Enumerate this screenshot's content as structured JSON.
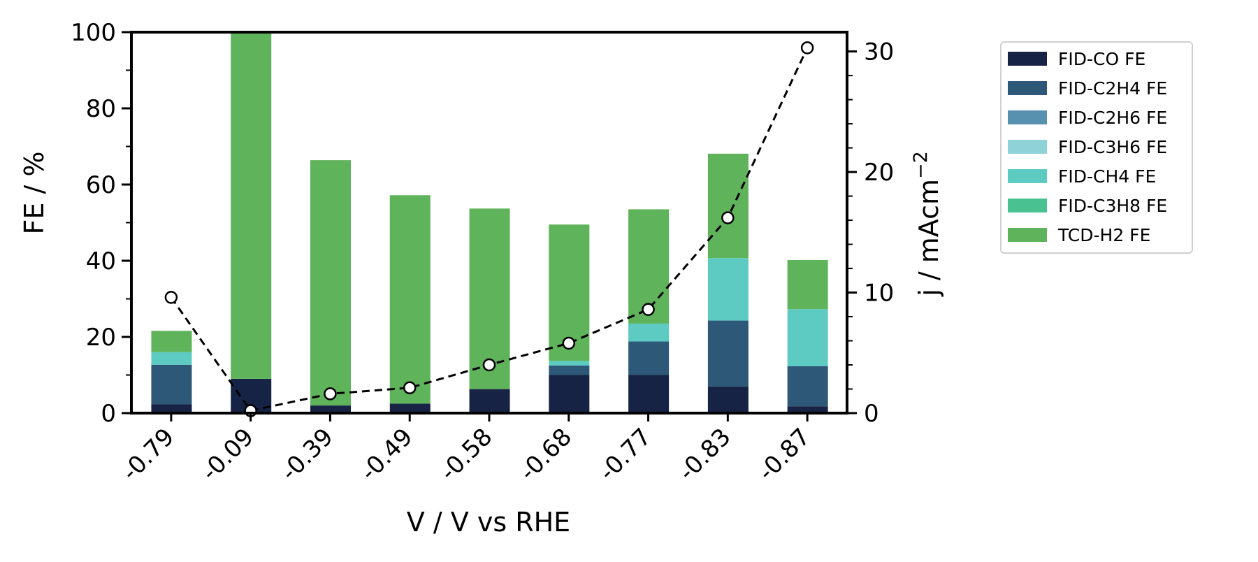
{
  "chart_data": {
    "type": "bar",
    "stacked": true,
    "categories": [
      "-0.79",
      "-0.09",
      "-0.39",
      "-0.49",
      "-0.58",
      "-0.68",
      "-0.77",
      "-0.83",
      "-0.87"
    ],
    "xlabel": "V / V vs RHE",
    "ylabel": "FE / %",
    "ylim": [
      0,
      100
    ],
    "y_ticks": [
      0,
      20,
      40,
      60,
      80,
      100
    ],
    "ylabel_right": "j / mAcm",
    "ylabel_right_sup": "−2",
    "ylim_right": [
      0,
      31.6
    ],
    "y_ticks_right": [
      0,
      10,
      20,
      30
    ],
    "grid": false,
    "legend_position": "outside-right",
    "series": [
      {
        "name": "FID-CO FE",
        "color": "#172344",
        "values": [
          2.3,
          9.0,
          2.0,
          2.5,
          6.3,
          10.0,
          10.0,
          7.0,
          1.8
        ]
      },
      {
        "name": "FID-C2H4 FE",
        "color": "#2e5878",
        "values": [
          10.4,
          0,
          0,
          0,
          0,
          2.5,
          8.8,
          17.3,
          10.5
        ]
      },
      {
        "name": "FID-C2H6 FE",
        "color": "#5891b0",
        "values": [
          0,
          0,
          0,
          0,
          0,
          0,
          0,
          0,
          0
        ]
      },
      {
        "name": "FID-C3H6 FE",
        "color": "#8fd3d9",
        "values": [
          0,
          0,
          0,
          0,
          0,
          0,
          0,
          0,
          0
        ]
      },
      {
        "name": "FID-CH4 FE",
        "color": "#5dcbc2",
        "values": [
          3.3,
          0,
          0,
          0,
          0,
          1.2,
          4.7,
          16.4,
          15.0
        ]
      },
      {
        "name": "FID-C3H8 FE",
        "color": "#4ac191",
        "values": [
          0,
          0,
          0,
          0,
          0,
          0,
          0,
          0,
          0
        ]
      },
      {
        "name": "TCD-H2 FE",
        "color": "#5fb35b",
        "values": [
          5.6,
          91.0,
          64.4,
          54.7,
          47.4,
          35.8,
          30.0,
          27.4,
          12.9
        ]
      }
    ],
    "line_series": {
      "axis": "right",
      "style": "dashed",
      "color": "#000000",
      "marker": "open-circle",
      "values": [
        9.6,
        0.2,
        1.6,
        2.1,
        4.0,
        5.8,
        8.6,
        16.2,
        30.3
      ]
    }
  }
}
